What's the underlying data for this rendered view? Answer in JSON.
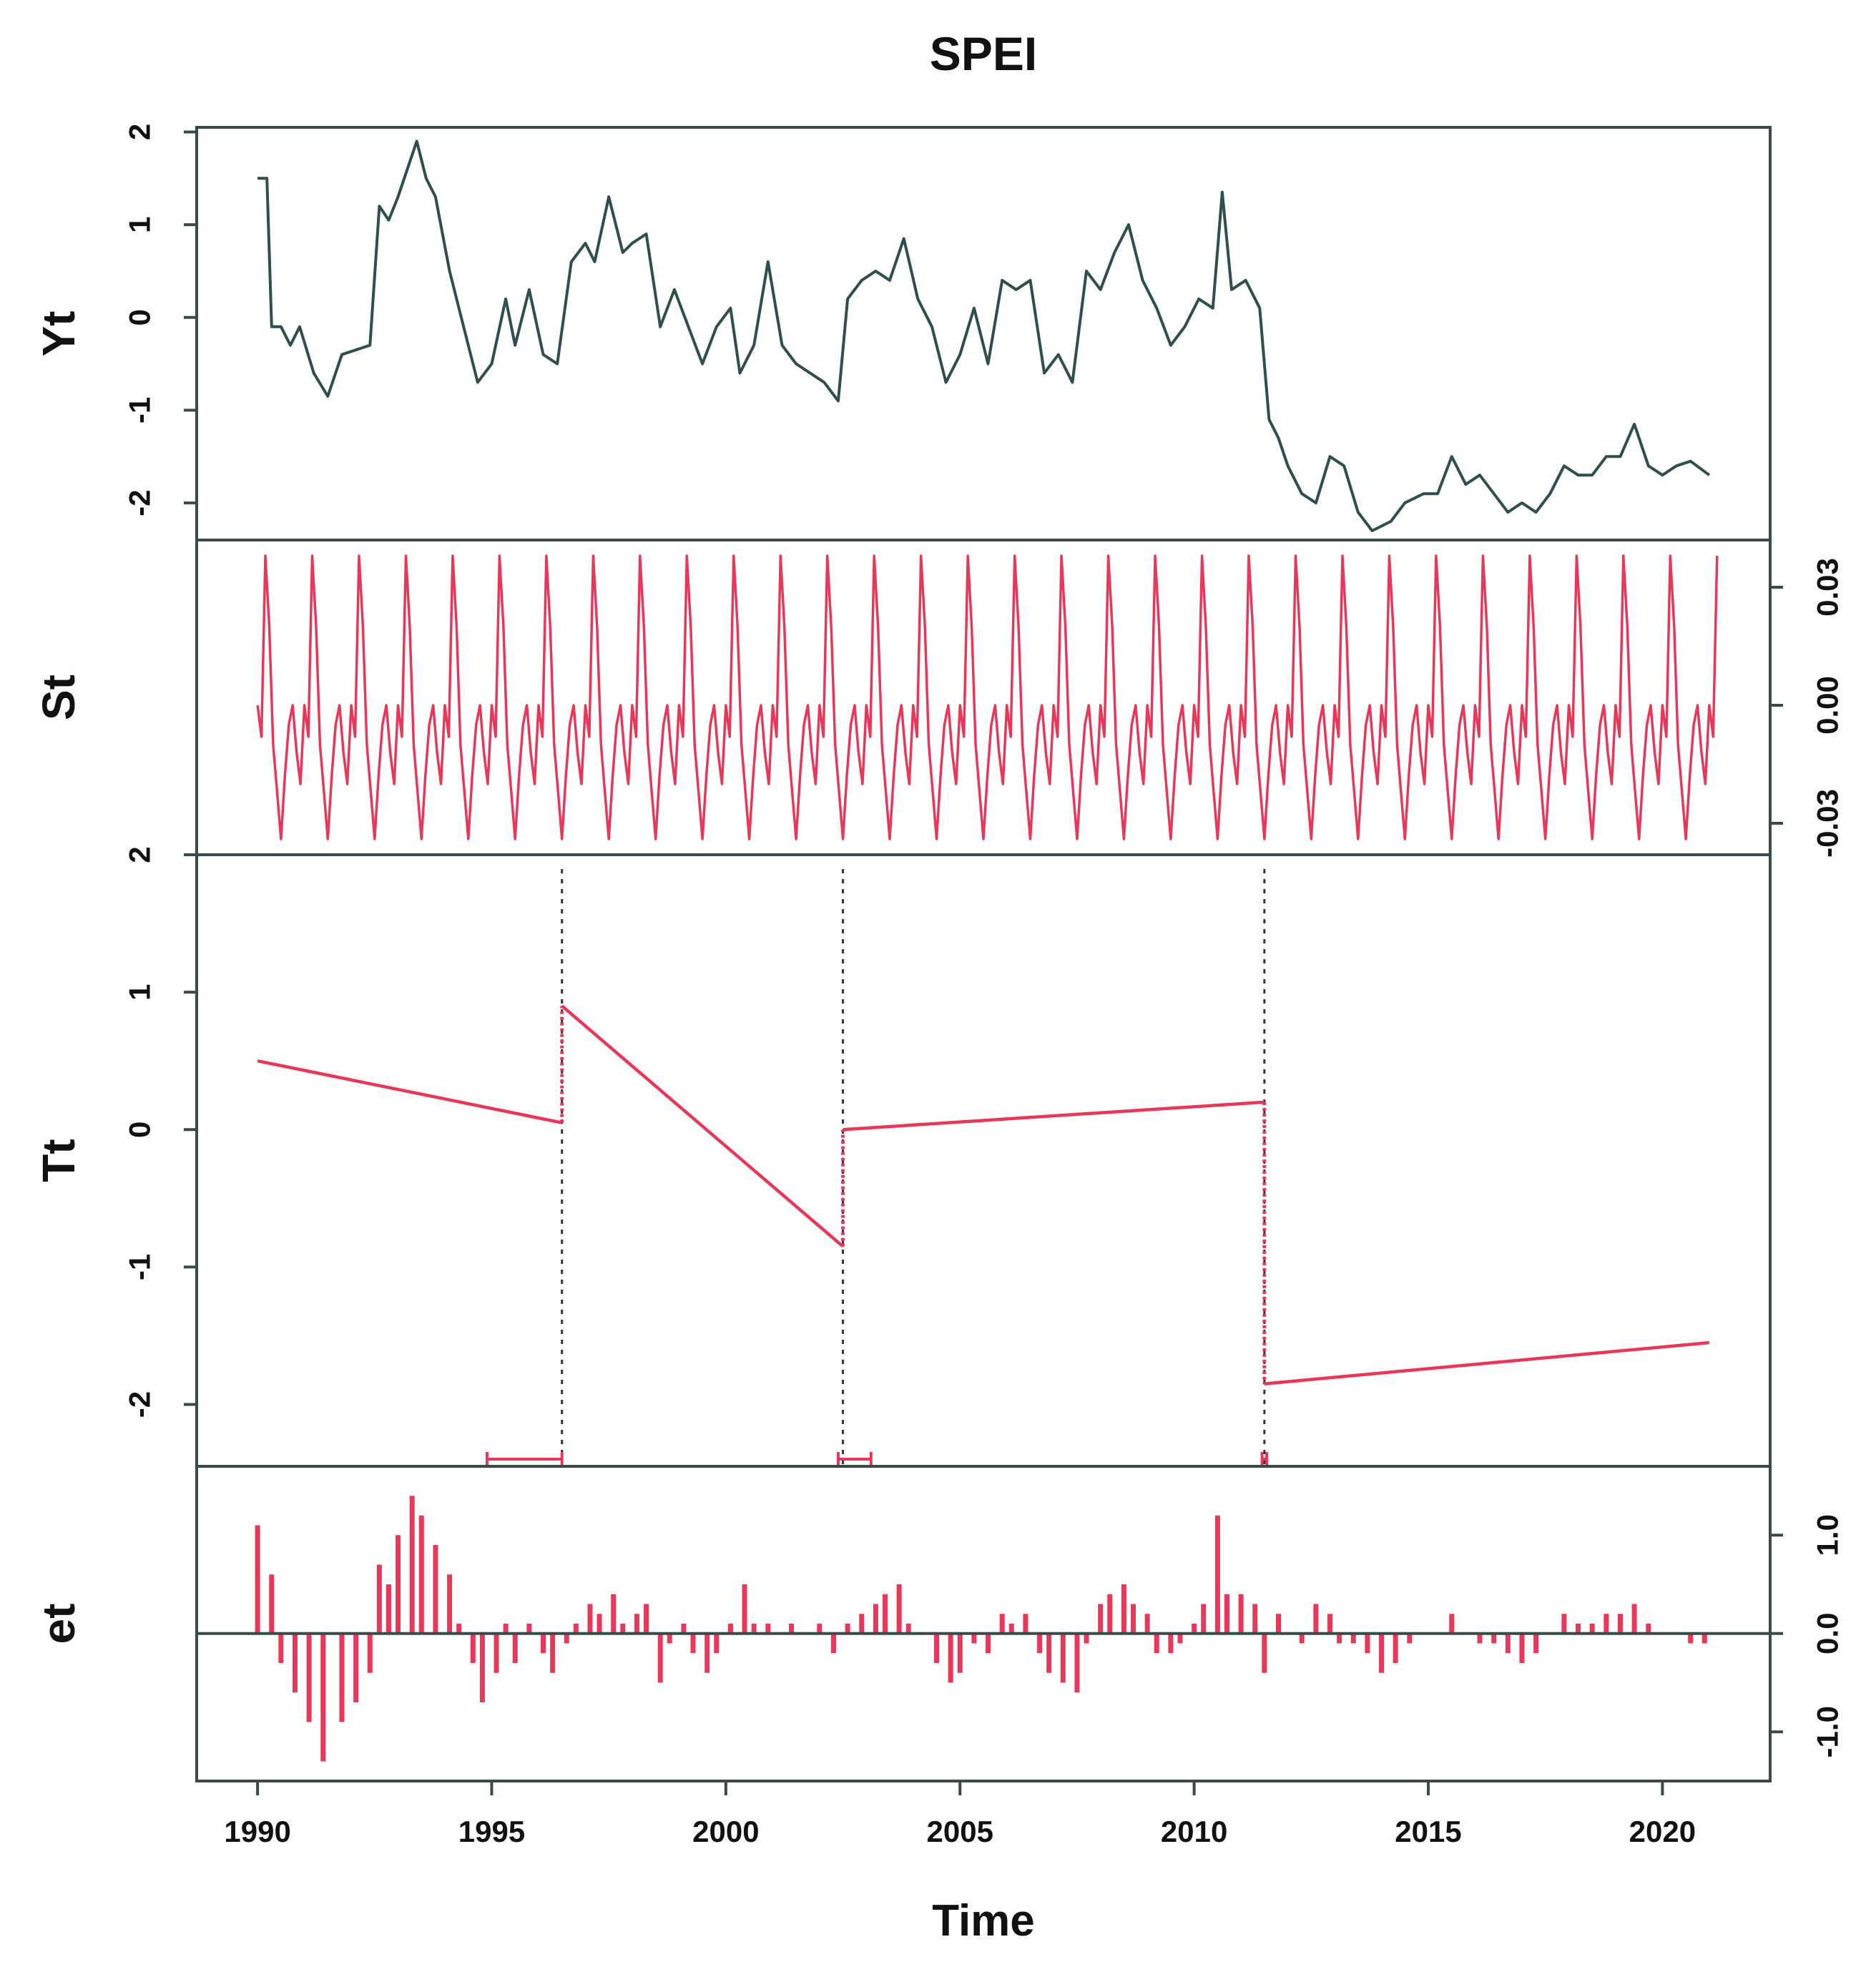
{
  "chart_data": {
    "type": "line",
    "title": "SPEI",
    "xlabel": "Time",
    "xlim": [
      1988.7,
      2022.3
    ],
    "x_ticks": [
      "1990",
      "1995",
      "2000",
      "2005",
      "2010",
      "2015",
      "2020"
    ],
    "grid": false,
    "colors": {
      "observed": "#2f4f4f",
      "component": "#e8385a",
      "axis": "#3a4a4a",
      "breakpoint": "#333333"
    },
    "breakpoints": [
      {
        "x": 1996.5,
        "ci": [
          1994.9,
          1996.5
        ]
      },
      {
        "x": 2002.5,
        "ci": [
          2002.4,
          2003.1
        ]
      },
      {
        "x": 2011.5,
        "ci": [
          2011.45,
          2011.55
        ]
      }
    ],
    "panels": [
      {
        "label": "Yt",
        "type": "line",
        "ylim": [
          -2.4,
          2.05
        ],
        "tick_side": "left",
        "y_ticks": [
          2,
          1,
          0,
          -1,
          -2
        ],
        "y_tick_labels": [
          "2",
          "1",
          "0",
          "-1",
          "-2"
        ],
        "points": [
          [
            1990.0,
            1.5
          ],
          [
            1990.2,
            1.5
          ],
          [
            1990.3,
            -0.1
          ],
          [
            1990.5,
            -0.1
          ],
          [
            1990.7,
            -0.3
          ],
          [
            1990.9,
            -0.1
          ],
          [
            1991.2,
            -0.6
          ],
          [
            1991.5,
            -0.85
          ],
          [
            1991.8,
            -0.4
          ],
          [
            1992.1,
            -0.35
          ],
          [
            1992.4,
            -0.3
          ],
          [
            1992.6,
            1.2
          ],
          [
            1992.8,
            1.05
          ],
          [
            1993.0,
            1.3
          ],
          [
            1993.2,
            1.6
          ],
          [
            1993.4,
            1.9
          ],
          [
            1993.6,
            1.5
          ],
          [
            1993.8,
            1.3
          ],
          [
            1994.1,
            0.5
          ],
          [
            1994.4,
            -0.1
          ],
          [
            1994.7,
            -0.7
          ],
          [
            1995.0,
            -0.5
          ],
          [
            1995.3,
            0.2
          ],
          [
            1995.5,
            -0.3
          ],
          [
            1995.8,
            0.3
          ],
          [
            1996.1,
            -0.4
          ],
          [
            1996.4,
            -0.5
          ],
          [
            1996.7,
            0.6
          ],
          [
            1997.0,
            0.8
          ],
          [
            1997.2,
            0.6
          ],
          [
            1997.5,
            1.3
          ],
          [
            1997.8,
            0.7
          ],
          [
            1998.0,
            0.8
          ],
          [
            1998.3,
            0.9
          ],
          [
            1998.6,
            -0.1
          ],
          [
            1998.9,
            0.3
          ],
          [
            1999.2,
            -0.1
          ],
          [
            1999.5,
            -0.5
          ],
          [
            1999.8,
            -0.1
          ],
          [
            2000.1,
            0.1
          ],
          [
            2000.3,
            -0.6
          ],
          [
            2000.6,
            -0.3
          ],
          [
            2000.9,
            0.6
          ],
          [
            2001.2,
            -0.3
          ],
          [
            2001.5,
            -0.5
          ],
          [
            2001.8,
            -0.6
          ],
          [
            2002.1,
            -0.7
          ],
          [
            2002.4,
            -0.9
          ],
          [
            2002.6,
            0.2
          ],
          [
            2002.9,
            0.4
          ],
          [
            2003.2,
            0.5
          ],
          [
            2003.5,
            0.4
          ],
          [
            2003.8,
            0.85
          ],
          [
            2004.1,
            0.2
          ],
          [
            2004.4,
            -0.1
          ],
          [
            2004.7,
            -0.7
          ],
          [
            2005.0,
            -0.4
          ],
          [
            2005.3,
            0.1
          ],
          [
            2005.6,
            -0.5
          ],
          [
            2005.9,
            0.4
          ],
          [
            2006.2,
            0.3
          ],
          [
            2006.5,
            0.4
          ],
          [
            2006.8,
            -0.6
          ],
          [
            2007.1,
            -0.4
          ],
          [
            2007.4,
            -0.7
          ],
          [
            2007.7,
            0.5
          ],
          [
            2008.0,
            0.3
          ],
          [
            2008.3,
            0.7
          ],
          [
            2008.6,
            1.0
          ],
          [
            2008.9,
            0.4
          ],
          [
            2009.2,
            0.1
          ],
          [
            2009.5,
            -0.3
          ],
          [
            2009.8,
            -0.1
          ],
          [
            2010.1,
            0.2
          ],
          [
            2010.4,
            0.1
          ],
          [
            2010.6,
            1.35
          ],
          [
            2010.8,
            0.3
          ],
          [
            2011.1,
            0.4
          ],
          [
            2011.4,
            0.1
          ],
          [
            2011.6,
            -1.1
          ],
          [
            2011.8,
            -1.3
          ],
          [
            2012.0,
            -1.6
          ],
          [
            2012.3,
            -1.9
          ],
          [
            2012.6,
            -2.0
          ],
          [
            2012.9,
            -1.5
          ],
          [
            2013.2,
            -1.6
          ],
          [
            2013.5,
            -2.1
          ],
          [
            2013.8,
            -2.3
          ],
          [
            2014.2,
            -2.2
          ],
          [
            2014.5,
            -2.0
          ],
          [
            2014.9,
            -1.9
          ],
          [
            2015.2,
            -1.9
          ],
          [
            2015.5,
            -1.5
          ],
          [
            2015.8,
            -1.8
          ],
          [
            2016.1,
            -1.7
          ],
          [
            2016.4,
            -1.9
          ],
          [
            2016.7,
            -2.1
          ],
          [
            2017.0,
            -2.0
          ],
          [
            2017.3,
            -2.1
          ],
          [
            2017.6,
            -1.9
          ],
          [
            2017.9,
            -1.6
          ],
          [
            2018.2,
            -1.7
          ],
          [
            2018.5,
            -1.7
          ],
          [
            2018.8,
            -1.5
          ],
          [
            2019.1,
            -1.5
          ],
          [
            2019.4,
            -1.15
          ],
          [
            2019.7,
            -1.6
          ],
          [
            2020.0,
            -1.7
          ],
          [
            2020.3,
            -1.6
          ],
          [
            2020.6,
            -1.55
          ],
          [
            2021.0,
            -1.7
          ]
        ]
      },
      {
        "label": "St",
        "type": "seasonal",
        "ylim": [
          -0.038,
          0.042
        ],
        "tick_side": "right",
        "y_ticks": [
          0.03,
          0.0,
          -0.03
        ],
        "y_tick_labels": [
          "0.03",
          "0.00",
          "-0.03"
        ],
        "start": 1990.0,
        "end": 2021.2,
        "monthly_pattern": [
          0.0,
          -0.008,
          0.038,
          0.02,
          -0.01,
          -0.022,
          -0.034,
          -0.018,
          -0.005,
          0.0,
          -0.012,
          -0.02
        ]
      },
      {
        "label": "Tt",
        "type": "line",
        "ylim": [
          -2.45,
          2.0
        ],
        "tick_side": "left",
        "y_ticks": [
          2,
          1,
          0,
          -1,
          -2
        ],
        "y_tick_labels": [
          "2",
          "1",
          "0",
          "-1",
          "-2"
        ],
        "segments": [
          [
            [
              1990.0,
              0.5
            ],
            [
              1996.5,
              0.05
            ]
          ],
          [
            [
              1996.5,
              0.9
            ],
            [
              2002.5,
              -0.85
            ]
          ],
          [
            [
              2002.5,
              0.0
            ],
            [
              2011.5,
              0.2
            ]
          ],
          [
            [
              2011.5,
              -1.85
            ],
            [
              2021.0,
              -1.55
            ]
          ]
        ]
      },
      {
        "label": "et",
        "type": "bar",
        "ylim": [
          -1.5,
          1.7
        ],
        "tick_side": "right",
        "y_ticks": [
          1.0,
          0.0,
          -1.0
        ],
        "y_tick_labels": [
          "1.0",
          "0.0",
          "-1.0"
        ],
        "points": [
          [
            1990.0,
            1.1
          ],
          [
            1990.3,
            0.6
          ],
          [
            1990.5,
            -0.3
          ],
          [
            1990.8,
            -0.6
          ],
          [
            1991.1,
            -0.9
          ],
          [
            1991.4,
            -1.3
          ],
          [
            1991.8,
            -0.9
          ],
          [
            1992.1,
            -0.7
          ],
          [
            1992.4,
            -0.4
          ],
          [
            1992.6,
            0.7
          ],
          [
            1992.8,
            0.5
          ],
          [
            1993.0,
            1.0
          ],
          [
            1993.3,
            1.4
          ],
          [
            1993.5,
            1.2
          ],
          [
            1993.8,
            0.9
          ],
          [
            1994.1,
            0.6
          ],
          [
            1994.3,
            0.1
          ],
          [
            1994.6,
            -0.3
          ],
          [
            1994.8,
            -0.7
          ],
          [
            1995.1,
            -0.4
          ],
          [
            1995.3,
            0.1
          ],
          [
            1995.5,
            -0.3
          ],
          [
            1995.8,
            0.1
          ],
          [
            1996.1,
            -0.2
          ],
          [
            1996.3,
            -0.4
          ],
          [
            1996.6,
            -0.1
          ],
          [
            1996.8,
            0.1
          ],
          [
            1997.1,
            0.3
          ],
          [
            1997.3,
            0.2
          ],
          [
            1997.6,
            0.4
          ],
          [
            1997.8,
            0.1
          ],
          [
            1998.1,
            0.2
          ],
          [
            1998.3,
            0.3
          ],
          [
            1998.6,
            -0.5
          ],
          [
            1998.8,
            -0.1
          ],
          [
            1999.1,
            0.1
          ],
          [
            1999.3,
            -0.2
          ],
          [
            1999.6,
            -0.4
          ],
          [
            1999.8,
            -0.2
          ],
          [
            2000.1,
            0.1
          ],
          [
            2000.4,
            0.5
          ],
          [
            2000.6,
            0.1
          ],
          [
            2000.9,
            0.1
          ],
          [
            2001.1,
            0.0
          ],
          [
            2001.4,
            0.1
          ],
          [
            2001.7,
            0.0
          ],
          [
            2002.0,
            0.1
          ],
          [
            2002.3,
            -0.2
          ],
          [
            2002.6,
            0.1
          ],
          [
            2002.9,
            0.2
          ],
          [
            2003.2,
            0.3
          ],
          [
            2003.4,
            0.4
          ],
          [
            2003.7,
            0.5
          ],
          [
            2003.9,
            0.1
          ],
          [
            2004.2,
            0.0
          ],
          [
            2004.5,
            -0.3
          ],
          [
            2004.8,
            -0.5
          ],
          [
            2005.0,
            -0.4
          ],
          [
            2005.3,
            -0.1
          ],
          [
            2005.6,
            -0.2
          ],
          [
            2005.9,
            0.2
          ],
          [
            2006.1,
            0.1
          ],
          [
            2006.4,
            0.2
          ],
          [
            2006.7,
            -0.2
          ],
          [
            2006.9,
            -0.4
          ],
          [
            2007.2,
            -0.5
          ],
          [
            2007.5,
            -0.6
          ],
          [
            2007.7,
            -0.1
          ],
          [
            2008.0,
            0.3
          ],
          [
            2008.2,
            0.4
          ],
          [
            2008.5,
            0.5
          ],
          [
            2008.7,
            0.3
          ],
          [
            2009.0,
            0.2
          ],
          [
            2009.2,
            -0.2
          ],
          [
            2009.5,
            -0.2
          ],
          [
            2009.7,
            -0.1
          ],
          [
            2010.0,
            0.1
          ],
          [
            2010.2,
            0.3
          ],
          [
            2010.5,
            1.2
          ],
          [
            2010.7,
            0.4
          ],
          [
            2011.0,
            0.4
          ],
          [
            2011.3,
            0.3
          ],
          [
            2011.5,
            -0.4
          ],
          [
            2011.8,
            0.2
          ],
          [
            2012.1,
            0.0
          ],
          [
            2012.3,
            -0.1
          ],
          [
            2012.6,
            0.3
          ],
          [
            2012.9,
            0.2
          ],
          [
            2013.1,
            -0.1
          ],
          [
            2013.4,
            -0.1
          ],
          [
            2013.7,
            -0.2
          ],
          [
            2014.0,
            -0.4
          ],
          [
            2014.3,
            -0.3
          ],
          [
            2014.6,
            -0.1
          ],
          [
            2014.9,
            0.0
          ],
          [
            2015.2,
            0.0
          ],
          [
            2015.5,
            0.2
          ],
          [
            2015.8,
            0.0
          ],
          [
            2016.1,
            -0.1
          ],
          [
            2016.4,
            -0.1
          ],
          [
            2016.7,
            -0.2
          ],
          [
            2017.0,
            -0.3
          ],
          [
            2017.3,
            -0.2
          ],
          [
            2017.6,
            0.0
          ],
          [
            2017.9,
            0.2
          ],
          [
            2018.2,
            0.1
          ],
          [
            2018.5,
            0.1
          ],
          [
            2018.8,
            0.2
          ],
          [
            2019.1,
            0.2
          ],
          [
            2019.4,
            0.3
          ],
          [
            2019.7,
            0.1
          ],
          [
            2020.0,
            0.0
          ],
          [
            2020.3,
            0.0
          ],
          [
            2020.6,
            -0.1
          ],
          [
            2020.9,
            -0.1
          ]
        ]
      }
    ]
  }
}
